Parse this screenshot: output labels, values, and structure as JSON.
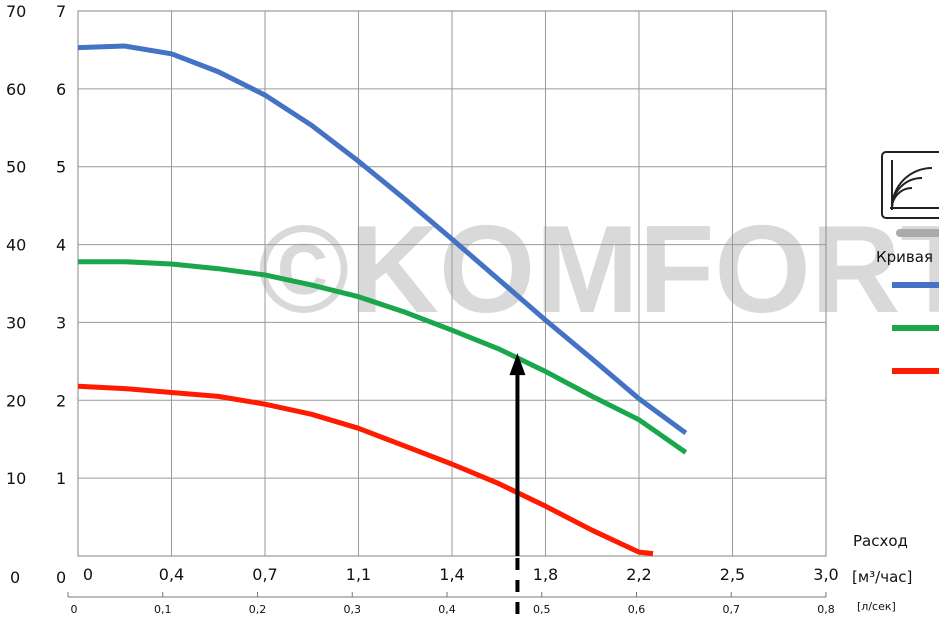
{
  "chart_data": {
    "type": "line",
    "title": "",
    "watermark": "©KOMFORT",
    "x_axis_primary": {
      "ticks": [
        "0",
        "0,4",
        "0,7",
        "1,1",
        "1,4",
        "1,8",
        "2,2",
        "2,5",
        "3,0"
      ],
      "unit": "[м³/час]",
      "label": "Расход"
    },
    "x_axis_secondary": {
      "ticks": [
        "0",
        "0,1",
        "0,2",
        "0,3",
        "0,4",
        "0,5",
        "0,6",
        "0,7",
        "0,8"
      ],
      "unit": "[л/сек]"
    },
    "y_axis_outer": {
      "ticks": [
        "0",
        "10",
        "20",
        "30",
        "40",
        "50",
        "60",
        "70"
      ]
    },
    "y_axis_inner": {
      "ticks": [
        "0",
        "1",
        "2",
        "3",
        "4",
        "5",
        "6",
        "7"
      ]
    },
    "x_range": [
      0,
      0.8
    ],
    "y_range": [
      0,
      7
    ],
    "legend_title": "Кривая",
    "series": [
      {
        "color": "#4472c4",
        "x": [
          0,
          0.05,
          0.1,
          0.15,
          0.2,
          0.25,
          0.3,
          0.35,
          0.4,
          0.45,
          0.5,
          0.55,
          0.6,
          0.65
        ],
        "y": [
          6.53,
          6.55,
          6.45,
          6.22,
          5.92,
          5.53,
          5.07,
          4.58,
          4.07,
          3.55,
          3.03,
          2.53,
          2.02,
          1.58
        ]
      },
      {
        "color": "#1aa64a",
        "x": [
          0,
          0.05,
          0.1,
          0.15,
          0.2,
          0.25,
          0.3,
          0.35,
          0.4,
          0.45,
          0.5,
          0.55,
          0.6,
          0.65
        ],
        "y": [
          3.78,
          3.78,
          3.75,
          3.69,
          3.61,
          3.48,
          3.33,
          3.13,
          2.9,
          2.66,
          2.37,
          2.05,
          1.75,
          1.33
        ]
      },
      {
        "color": "#ff1a00",
        "x": [
          0,
          0.05,
          0.1,
          0.15,
          0.2,
          0.25,
          0.3,
          0.35,
          0.4,
          0.45,
          0.5,
          0.55,
          0.6,
          0.615
        ],
        "y": [
          2.18,
          2.15,
          2.1,
          2.05,
          1.95,
          1.82,
          1.64,
          1.41,
          1.18,
          0.93,
          0.64,
          0.33,
          0.05,
          0.03
        ]
      }
    ],
    "operating_point": {
      "x": 0.47,
      "y": 2.58
    },
    "grid": true
  }
}
